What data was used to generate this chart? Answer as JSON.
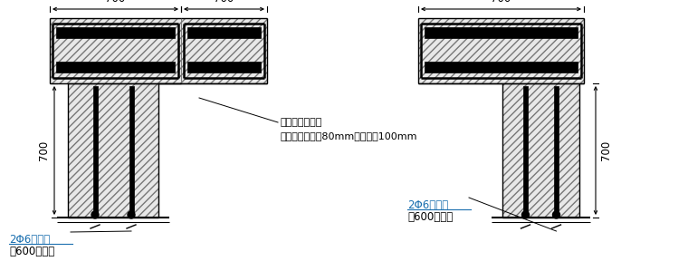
{
  "bg_color": "#ffffff",
  "lc": "#000000",
  "hatch_fc": "#e8e8e8",
  "annotation_color": "#1a6faf",
  "label1_line1": "2Φ6氿墙高",
  "label1_line2": "每600设一道",
  "label2_line1": "2Φ6氿墙高",
  "label2_line2": "每600设一道",
  "note1": "采用结构胶植筋",
  "note2": "拉结筋植入深度80mm，配筋带100mm",
  "dim700": "700"
}
